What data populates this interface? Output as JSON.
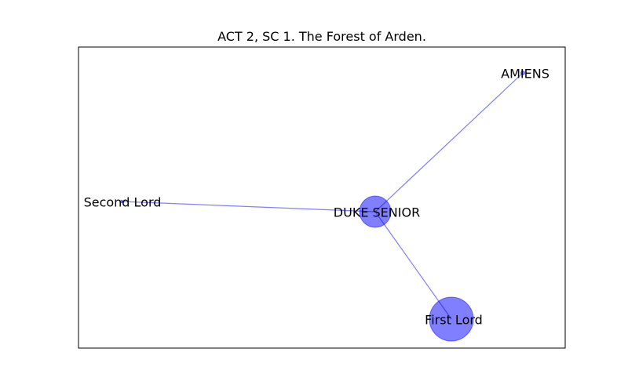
{
  "title": "ACT 2, SC 1. The Forest of Arden.",
  "colors": {
    "node_fill": "#0000ff",
    "edge": "#0000ff",
    "frame": "#000000"
  },
  "nodes": [
    {
      "id": "duke",
      "label": "DUKE SENIOR"
    },
    {
      "id": "first",
      "label": "First Lord"
    },
    {
      "id": "second",
      "label": "Second Lord"
    },
    {
      "id": "amiens",
      "label": "AMIENS"
    }
  ],
  "edges": [
    {
      "source": "duke",
      "target": "amiens"
    },
    {
      "source": "duke",
      "target": "second"
    },
    {
      "source": "duke",
      "target": "first"
    }
  ]
}
